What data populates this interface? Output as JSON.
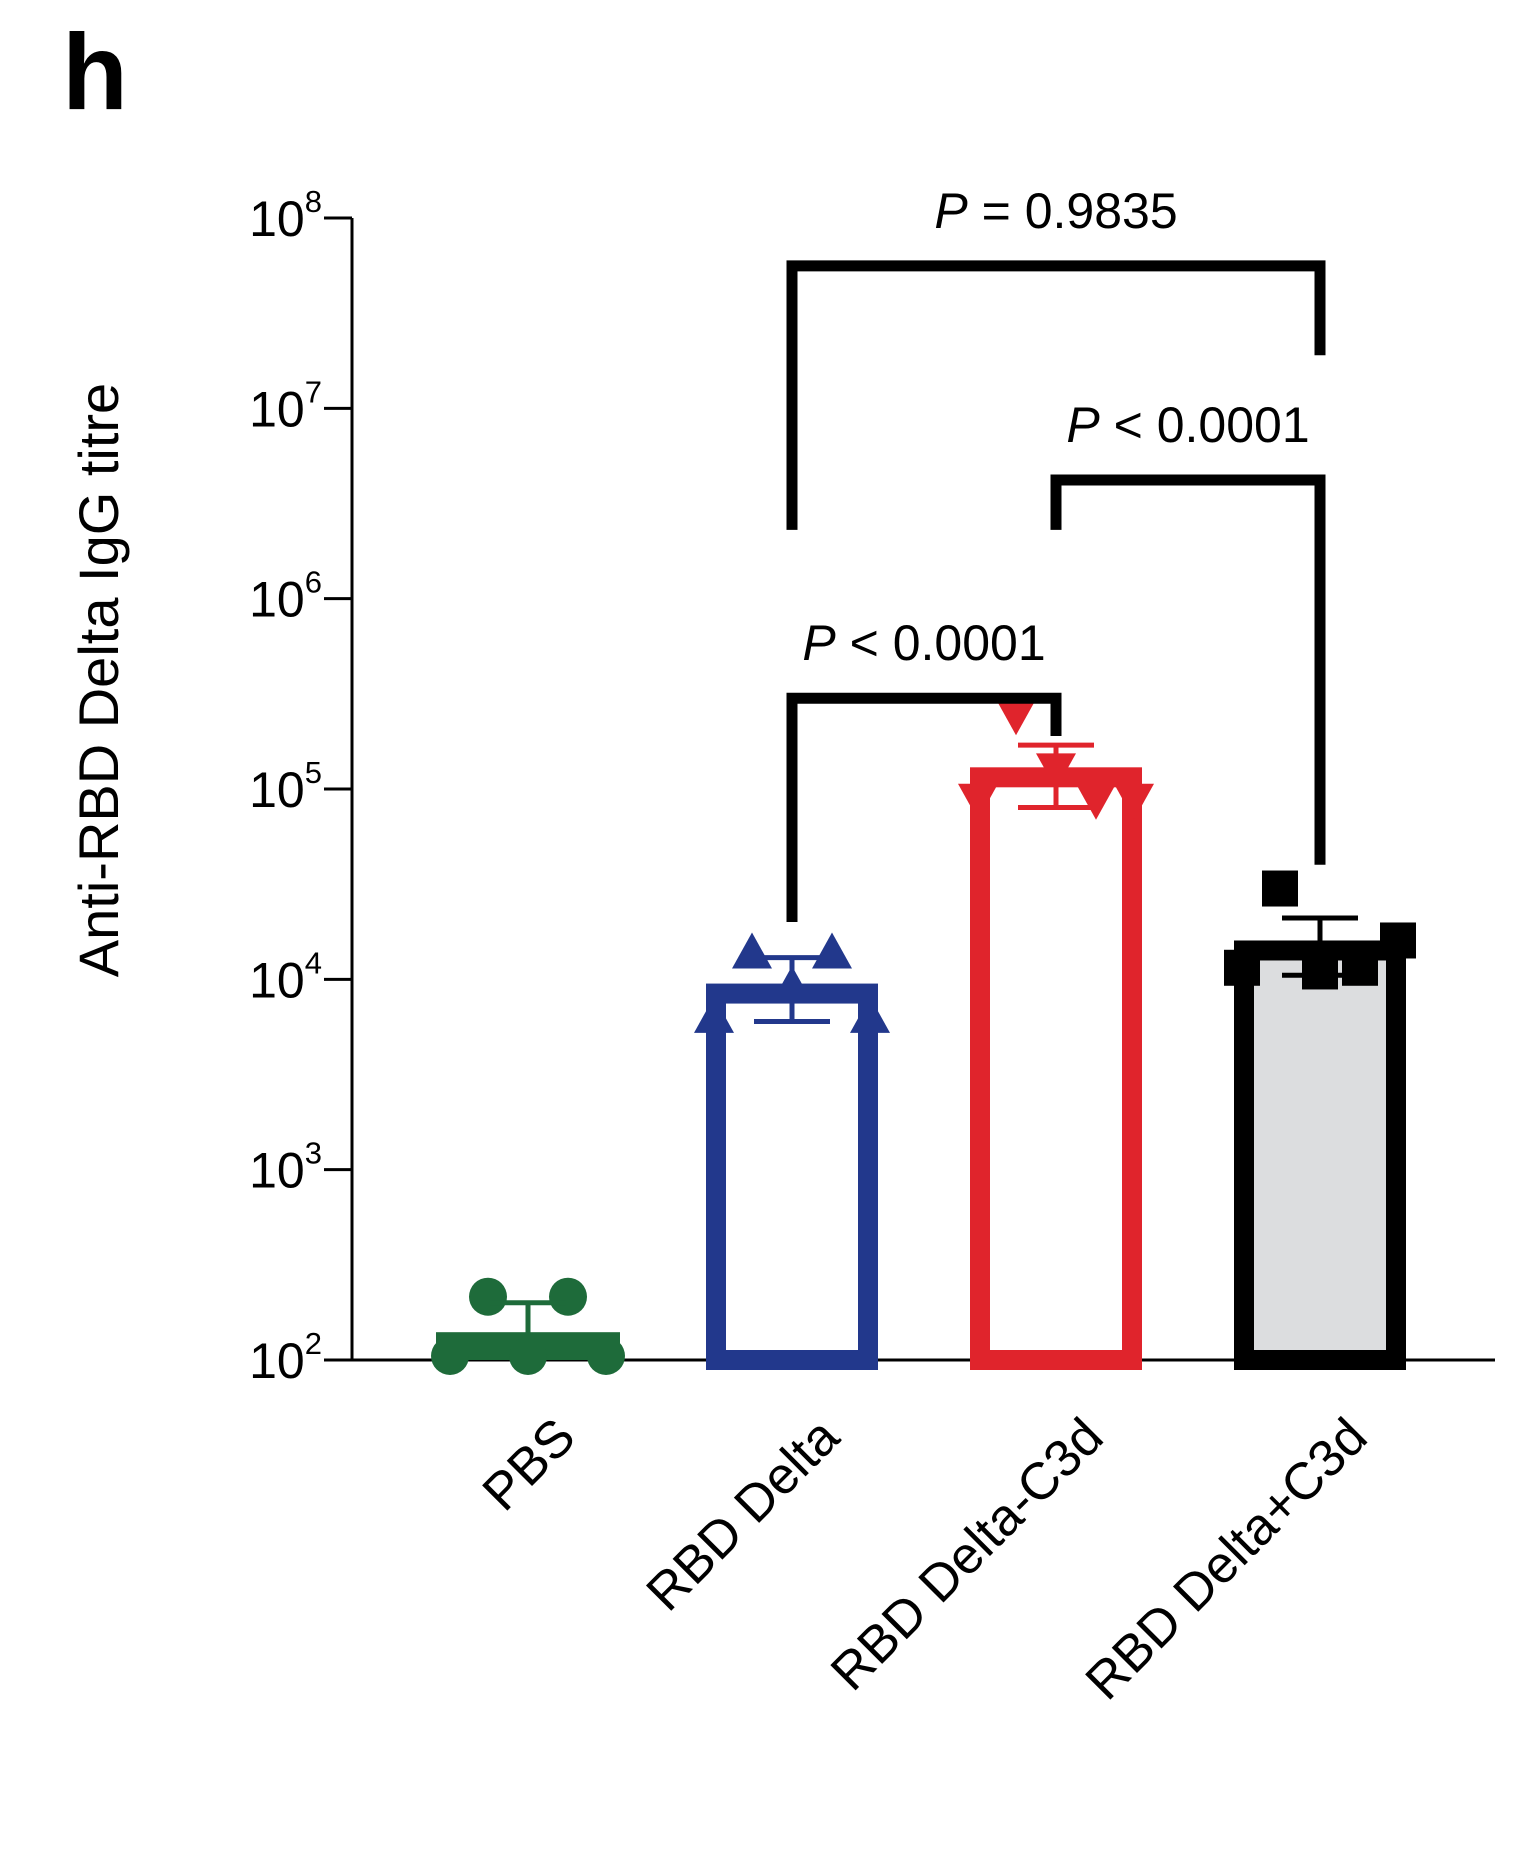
{
  "panel_label": "h",
  "chart_data": {
    "type": "bar",
    "ylabel": "Anti-RBD Delta IgG  titre",
    "xlabel": "",
    "yscale": "log",
    "ylim": [
      100,
      100000000
    ],
    "yticks": [
      {
        "value": 100,
        "base": "10",
        "exp": "2"
      },
      {
        "value": 1000,
        "base": "10",
        "exp": "3"
      },
      {
        "value": 10000,
        "base": "10",
        "exp": "4"
      },
      {
        "value": 100000,
        "base": "10",
        "exp": "5"
      },
      {
        "value": 1000000,
        "base": "10",
        "exp": "6"
      },
      {
        "value": 10000000,
        "base": "10",
        "exp": "7"
      },
      {
        "value": 100000000,
        "base": "10",
        "exp": "8"
      }
    ],
    "categories": [
      "PBS",
      "RBD Delta",
      "RBD Delta-C3d",
      "RBD Delta+C3d"
    ],
    "bars": [
      {
        "category": "PBS",
        "value": 140,
        "err_low": 110,
        "err_high": 200,
        "marker": "circle",
        "color": "#1e6b3a",
        "fill": "#1e6b3a",
        "points": [
          215,
          215,
          105,
          105,
          105
        ]
      },
      {
        "category": "RBD Delta",
        "value": 9500,
        "err_low": 6000,
        "err_high": 13000,
        "marker": "triangle-up",
        "color": "#22388c",
        "fill": "#ffffff",
        "points": [
          13500,
          13500,
          6200,
          6200,
          9000
        ]
      },
      {
        "category": "RBD Delta-C3d",
        "value": 130000,
        "err_low": 80000,
        "err_high": 170000,
        "marker": "triangle-down",
        "color": "#e0242c",
        "fill": "#ffffff",
        "points": [
          250000,
          90000,
          90000,
          90000,
          130000
        ]
      },
      {
        "category": "RBD Delta+C3d",
        "value": 16000,
        "err_low": 10500,
        "err_high": 21000,
        "marker": "square",
        "color": "#000000",
        "fill": "#dcdddf",
        "points": [
          30000,
          11500,
          11500,
          16000,
          11000
        ]
      }
    ],
    "comparisons": [
      {
        "from": "RBD Delta",
        "to": "RBD Delta-C3d",
        "label_prefix": "P",
        "label_rest": " < 0.0001",
        "bracket_y": 300000,
        "from_end": 20000,
        "to_end": 190000
      },
      {
        "from": "RBD Delta-C3d",
        "to": "RBD Delta+C3d",
        "label_prefix": "P",
        "label_rest": " < 0.0001",
        "bracket_y": 4200000,
        "from_end": 2300000,
        "to_end": 40000
      },
      {
        "from": "RBD Delta",
        "to": "RBD Delta+C3d",
        "label_prefix": "P",
        "label_rest": " = 0.9835",
        "bracket_y": 56000000,
        "from_end": 2300000,
        "to_end": 19000000
      }
    ],
    "grid": false,
    "legend": "none"
  }
}
